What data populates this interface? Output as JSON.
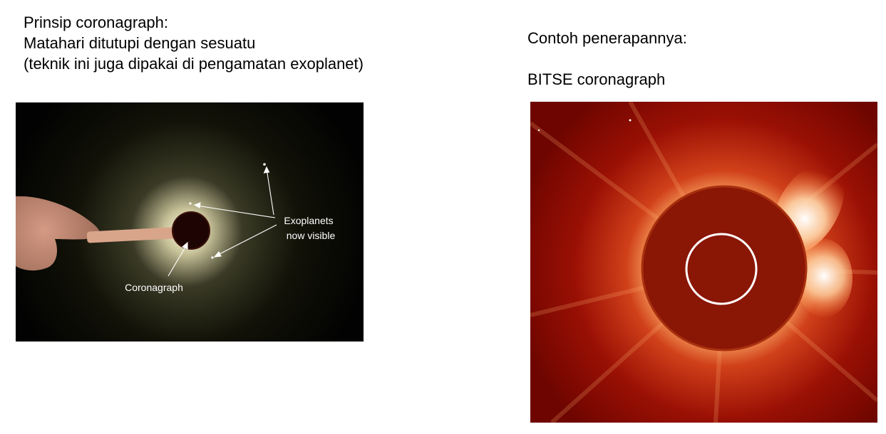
{
  "left_text": {
    "line1": "Prinsip coronagraph:",
    "line2": "Matahari ditutupi dengan sesuatu",
    "line3": "(teknik ini juga dipakai di pengamatan exoplanet)"
  },
  "right_text": {
    "line1": "Contoh penerapannya:",
    "line2": "BITSE coronagraph"
  },
  "left_figure": {
    "exoplanets_label_line1": "Exoplanets",
    "exoplanets_label_line2": "now visible",
    "coronagraph_label": "Coronagraph"
  }
}
